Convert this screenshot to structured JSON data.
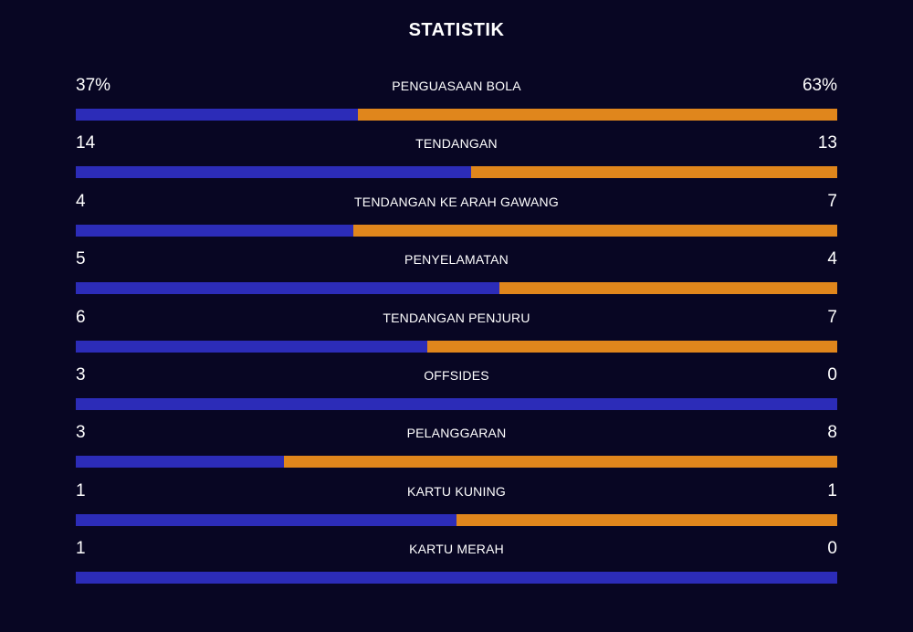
{
  "header": {
    "title": "STATISTIK"
  },
  "colors": {
    "background": "#080623",
    "home": "#2c2cb8",
    "away": "#e0861c",
    "text": "#ffffff"
  },
  "stats": [
    {
      "label": "PENGUASAAN BOLA",
      "left": "37%",
      "right": "63%",
      "home_share": 0.37
    },
    {
      "label": "TENDANGAN",
      "left": "14",
      "right": "13",
      "home_share": 0.519
    },
    {
      "label": "TENDANGAN KE ARAH GAWANG",
      "left": "4",
      "right": "7",
      "home_share": 0.364
    },
    {
      "label": "PENYELAMATAN",
      "left": "5",
      "right": "4",
      "home_share": 0.556
    },
    {
      "label": "TENDANGAN PENJURU",
      "left": "6",
      "right": "7",
      "home_share": 0.462
    },
    {
      "label": "OFFSIDES",
      "left": "3",
      "right": "0",
      "home_share": 1.0
    },
    {
      "label": "PELANGGARAN",
      "left": "3",
      "right": "8",
      "home_share": 0.273
    },
    {
      "label": "KARTU KUNING",
      "left": "1",
      "right": "1",
      "home_share": 0.5
    },
    {
      "label": "KARTU MERAH",
      "left": "1",
      "right": "0",
      "home_share": 1.0
    }
  ]
}
